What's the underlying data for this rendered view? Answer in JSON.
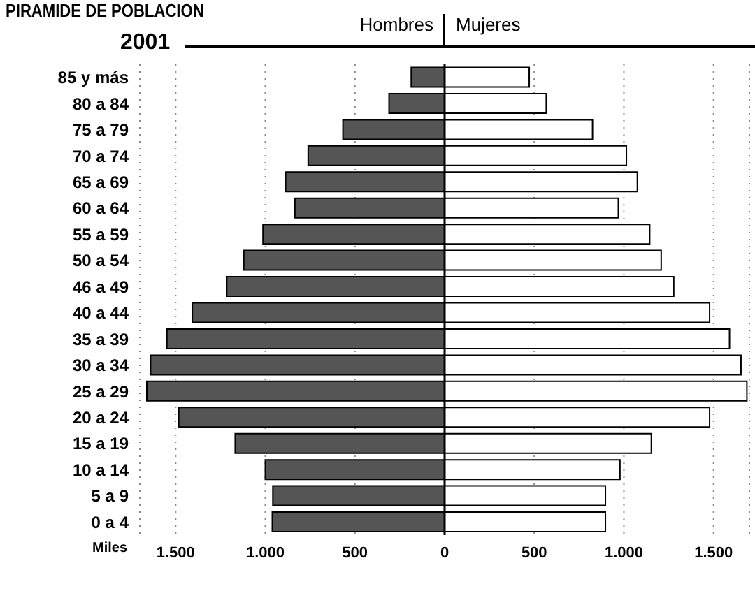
{
  "chart_data": {
    "type": "bar",
    "title": "PIRAMIDE DE POBLACION",
    "subtitle": "2001",
    "xlabel": "Miles",
    "orientation": "horizontal",
    "stacked": true,
    "categories": [
      "85 y más",
      "80 a 84",
      "75 a 79",
      "70 a 74",
      "65 a 69",
      "60 a 64",
      "55 a 59",
      "50 a 54",
      "46 a 49",
      "40 a 44",
      "35 a 39",
      "30 a 34",
      "25 a 29",
      "20 a 24",
      "15 a 19",
      "10 a 14",
      "5 a 9",
      "0 a 4"
    ],
    "series": [
      {
        "name": "Hombres",
        "color": "#555555",
        "values": [
          -186,
          -310,
          -567,
          -761,
          -887,
          -835,
          -1013,
          -1120,
          -1215,
          -1407,
          -1549,
          -1640,
          -1661,
          -1483,
          -1168,
          -1000,
          -958,
          -961
        ]
      },
      {
        "name": "Mujeres",
        "color": "#ffffff",
        "values": [
          472,
          567,
          825,
          1014,
          1075,
          969,
          1144,
          1208,
          1278,
          1478,
          1589,
          1653,
          1686,
          1478,
          1153,
          978,
          897,
          897
        ]
      }
    ],
    "xlim": [
      -1700,
      1700
    ],
    "xticks": [
      {
        "value": -1500,
        "label": "1.500"
      },
      {
        "value": -1000,
        "label": "1.000"
      },
      {
        "value": -500,
        "label": "500"
      },
      0,
      500,
      {
        "value": 1000,
        "label": "1.000"
      },
      {
        "value": 1500,
        "label": "1.500"
      }
    ],
    "grid": "x",
    "legend": "top"
  }
}
